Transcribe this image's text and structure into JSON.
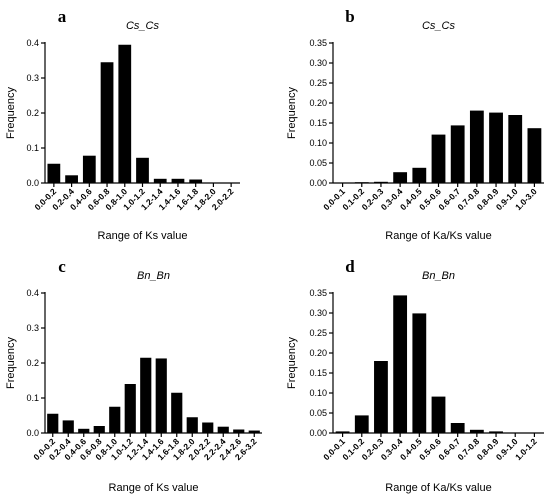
{
  "chart_data": [
    {
      "panel": "a",
      "type": "bar",
      "title": "Cs_Cs",
      "xlabel": "Range of Ks value",
      "ylabel": "Frequency",
      "ylim": [
        0,
        0.4
      ],
      "yticks": [
        "0.0",
        "0.1",
        "0.2",
        "0.3",
        "0.4"
      ],
      "categories": [
        "0.0-0.2",
        "0.2-0.4",
        "0.4-0.6",
        "0.6-0.8",
        "0.8-1.0",
        "1.0-1.2",
        "1.2-1.4",
        "1.4-1.6",
        "1.6-1.8",
        "1.8-2.0",
        "2.0-2.2"
      ],
      "values": [
        0.055,
        0.022,
        0.078,
        0.345,
        0.395,
        0.072,
        0.012,
        0.012,
        0.01,
        0.0,
        0.0
      ]
    },
    {
      "panel": "b",
      "type": "bar",
      "title": "Cs_Cs",
      "xlabel": "Range of Ka/Ks value",
      "ylabel": "Frequency",
      "ylim": [
        0,
        0.35
      ],
      "yticks": [
        "0.00",
        "0.05",
        "0.10",
        "0.15",
        "0.20",
        "0.25",
        "0.30",
        "0.35"
      ],
      "categories": [
        "0.0-0.1",
        "0.1-0.2",
        "0.2-0.3",
        "0.3-0.4",
        "0.4-0.5",
        "0.5-0.6",
        "0.6-0.7",
        "0.7-0.8",
        "0.8-0.9",
        "0.9-1.0",
        "1.0-3.0"
      ],
      "values": [
        0.0,
        0.002,
        0.003,
        0.027,
        0.038,
        0.121,
        0.144,
        0.181,
        0.176,
        0.17,
        0.137
      ]
    },
    {
      "panel": "c",
      "type": "bar",
      "title": "Bn_Bn",
      "xlabel": "Range of Ks value",
      "ylabel": "Frequency",
      "ylim": [
        0,
        0.4
      ],
      "yticks": [
        "0.0",
        "0.1",
        "0.2",
        "0.3",
        "0.4"
      ],
      "categories": [
        "0.0-0.2",
        "0.2-0.4",
        "0.4-0.6",
        "0.6-0.8",
        "0.8-1.0",
        "1.0-1.2",
        "1.2-1.4",
        "1.4-1.6",
        "1.6-1.8",
        "1.8-2.0",
        "2.0-2.2",
        "2.2-2.4",
        "2.4-2.6",
        "2.6-3.2"
      ],
      "values": [
        0.055,
        0.036,
        0.012,
        0.02,
        0.075,
        0.14,
        0.215,
        0.213,
        0.115,
        0.045,
        0.03,
        0.018,
        0.01,
        0.007
      ]
    },
    {
      "panel": "d",
      "type": "bar",
      "title": "Bn_Bn",
      "xlabel": "Range of Ka/Ks value",
      "ylabel": "Frequency",
      "ylim": [
        0,
        0.35
      ],
      "yticks": [
        "0.00",
        "0.05",
        "0.10",
        "0.15",
        "0.20",
        "0.25",
        "0.30",
        "0.35"
      ],
      "categories": [
        "0.0-0.1",
        "0.1-0.2",
        "0.2-0.3",
        "0.3-0.4",
        "0.4-0.5",
        "0.5-0.6",
        "0.6-0.7",
        "0.7-0.8",
        "0.8-0.9",
        "0.9-1.0",
        "1.0-1.2"
      ],
      "values": [
        0.004,
        0.044,
        0.18,
        0.344,
        0.299,
        0.091,
        0.025,
        0.008,
        0.004,
        0.001,
        0.001
      ]
    }
  ]
}
